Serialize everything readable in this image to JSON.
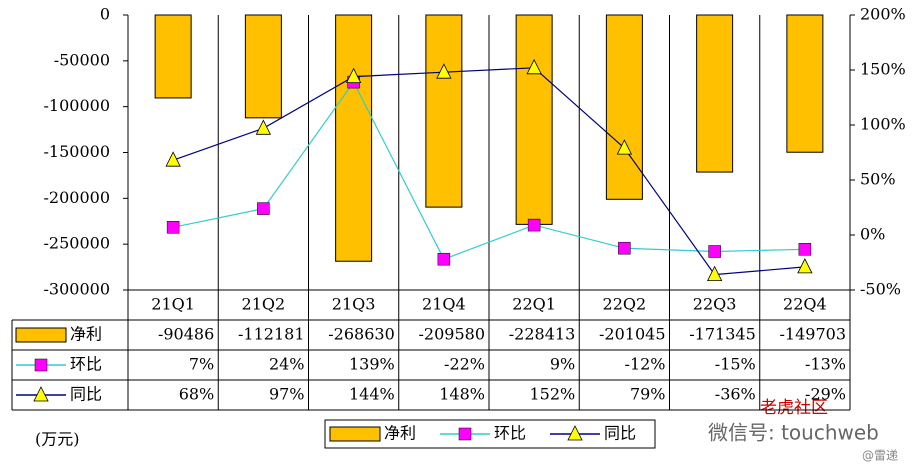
{
  "chart_data": {
    "type": "bar-line",
    "y_unit_label": "(万元)",
    "categories": [
      "21Q1",
      "21Q2",
      "21Q3",
      "21Q4",
      "22Q1",
      "22Q2",
      "22Q3",
      "22Q4"
    ],
    "series": [
      {
        "name": "净利",
        "type": "bar",
        "color": "#ffc000",
        "values": [
          -90486,
          -112181,
          -268630,
          -209580,
          -228413,
          -201045,
          -171345,
          -149703
        ]
      },
      {
        "name": "环比",
        "type": "line",
        "axis": "y2",
        "color": "#33cccc",
        "marker": "square",
        "marker_color": "#ff00ff",
        "values": [
          7,
          24,
          139,
          -22,
          9,
          -12,
          -15,
          -13
        ],
        "value_labels": [
          "7%",
          "24%",
          "139%",
          "-22%",
          "9%",
          "-12%",
          "-15%",
          "-13%"
        ]
      },
      {
        "name": "同比",
        "type": "line",
        "axis": "y2",
        "color": "#000080",
        "marker": "triangle",
        "marker_color": "#ffff00",
        "values": [
          68,
          97,
          144,
          148,
          152,
          79,
          -36,
          -29
        ],
        "value_labels": [
          "68%",
          "97%",
          "144%",
          "148%",
          "152%",
          "79%",
          "-36%",
          "-29%"
        ]
      }
    ],
    "ylim": [
      -300000,
      0
    ],
    "yticks": [
      0,
      -50000,
      -100000,
      -150000,
      -200000,
      -250000,
      -300000
    ],
    "y2lim": [
      -50,
      200
    ],
    "y2ticks": [
      {
        "value": 200,
        "label": "200%"
      },
      {
        "value": 150,
        "label": "150%"
      },
      {
        "value": 100,
        "label": "100%"
      },
      {
        "value": 50,
        "label": "50%"
      },
      {
        "value": 0,
        "label": "0%"
      },
      {
        "value": -50,
        "label": "-50%"
      }
    ],
    "watermark": [
      "老虎社区",
      "微信号: touchweb",
      "@雷递"
    ]
  }
}
